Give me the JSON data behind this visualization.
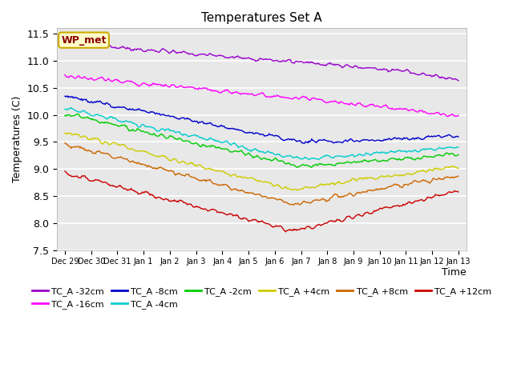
{
  "title": "Temperatures Set A",
  "xlabel": "Time",
  "ylabel": "Temperatures (C)",
  "ylim": [
    7.5,
    11.6
  ],
  "background_color": "#e8e8e8",
  "grid_color": "white",
  "series": [
    {
      "label": "TC_A -32cm",
      "color": "#9900cc",
      "start": 11.32,
      "low": 10.82,
      "low_t": 0.85,
      "end": 10.65
    },
    {
      "label": "TC_A -16cm",
      "color": "#ff00ff",
      "start": 10.72,
      "low": 10.12,
      "low_t": 0.85,
      "end": 9.97
    },
    {
      "label": "TC_A -8cm",
      "color": "#0000cc",
      "start": 10.35,
      "low": 9.5,
      "low_t": 0.6,
      "end": 9.6
    },
    {
      "label": "TC_A -4cm",
      "color": "#00cccc",
      "start": 10.12,
      "low": 9.18,
      "low_t": 0.6,
      "end": 9.4
    },
    {
      "label": "TC_A -2cm",
      "color": "#00cc00",
      "start": 10.02,
      "low": 9.05,
      "low_t": 0.6,
      "end": 9.28
    },
    {
      "label": "TC_A +4cm",
      "color": "#cccc00",
      "start": 9.68,
      "low": 8.62,
      "low_t": 0.58,
      "end": 9.05
    },
    {
      "label": "TC_A +8cm",
      "color": "#cc6600",
      "start": 9.47,
      "low": 8.35,
      "low_t": 0.58,
      "end": 8.88
    },
    {
      "label": "TC_A +12cm",
      "color": "#cc0000",
      "start": 8.92,
      "low": 7.85,
      "low_t": 0.58,
      "end": 8.6
    }
  ],
  "legend_label_box": "WP_met",
  "xtick_labels": [
    "Dec 29",
    "Dec 30",
    "Dec 31",
    "Jan 1",
    "Jan 2",
    "Jan 3",
    "Jan 4",
    "Jan 5",
    "Jan 6",
    "Jan 7",
    "Jan 8",
    "Jan 9",
    "Jan 10",
    "Jan 11",
    "Jan 12",
    "Jan 13"
  ],
  "xtick_positions": [
    0,
    1,
    2,
    3,
    4,
    5,
    6,
    7,
    8,
    9,
    10,
    11,
    12,
    13,
    14,
    15
  ],
  "ytick_values": [
    7.5,
    8.0,
    8.5,
    9.0,
    9.5,
    10.0,
    10.5,
    11.0,
    11.5
  ]
}
